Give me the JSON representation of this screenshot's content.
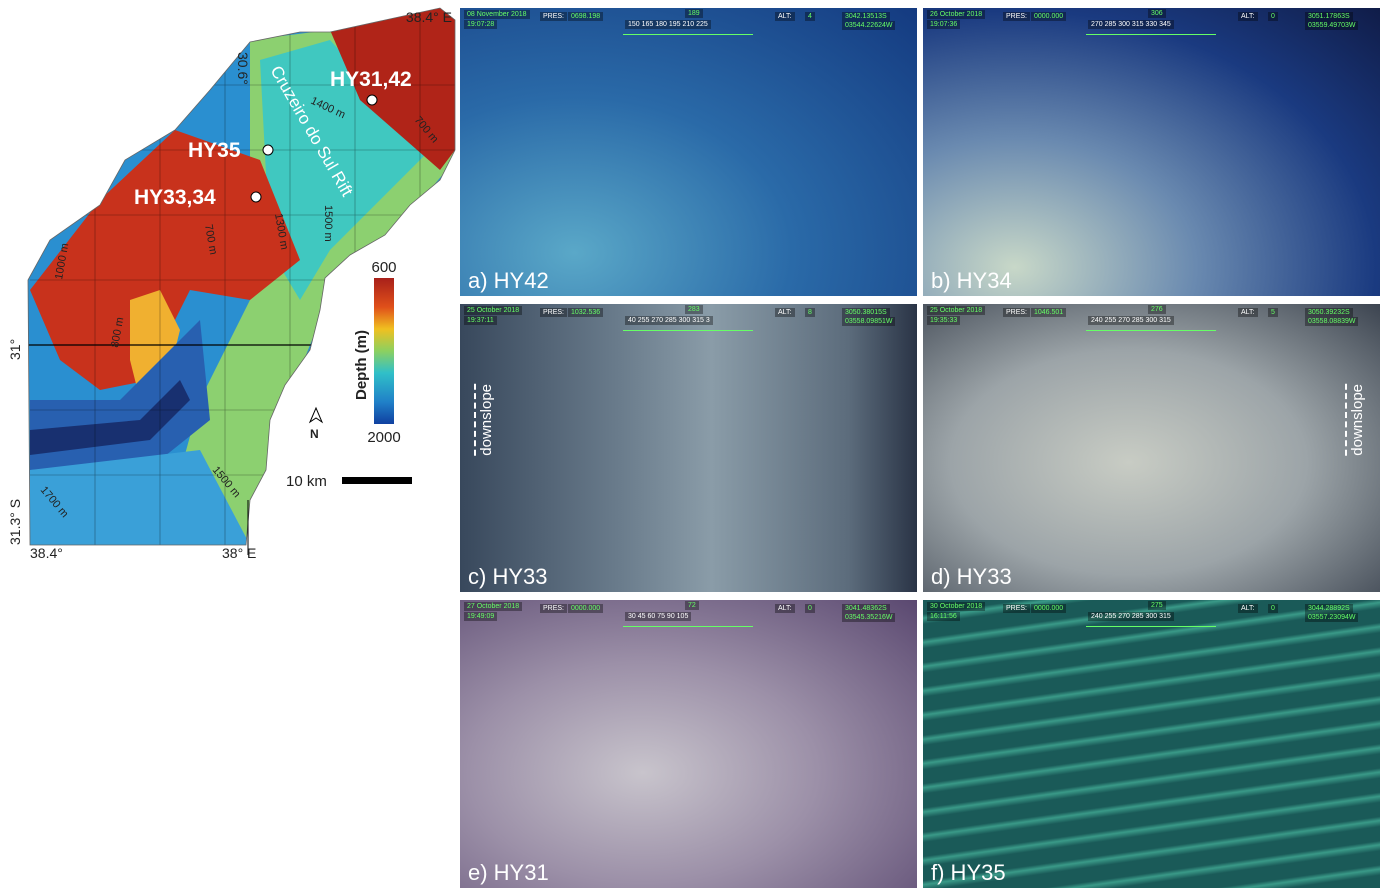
{
  "map": {
    "coords": {
      "top_right": "38.4° E",
      "lat_top": "30.6°",
      "lat_mid": "31°",
      "lat_bottom": "31.3° S",
      "lon_left": "38.4°",
      "lon_right": "38° E"
    },
    "sites": [
      "HY31,42",
      "HY35",
      "HY33,34"
    ],
    "rift_label": "Cruzeiro do Sul Rift",
    "contour_labels": [
      "1400 m",
      "700 m",
      "1300 m",
      "1500 m",
      "700 m",
      "1000 m",
      "800 m",
      "1700 m",
      "1500 m"
    ],
    "legend": {
      "title": "Depth (m)",
      "top": "600",
      "bottom": "2000"
    },
    "north": "N",
    "scale": "10 km"
  },
  "panels": [
    {
      "label": "a) HY42",
      "hud": {
        "date": "08 November 2018",
        "time": "19:07:28",
        "pres_label": "PRES:",
        "pres": "0698.198",
        "compass": "150 165 180 195 210 225",
        "heading": "189",
        "alt_label": "ALT:",
        "alt": "4",
        "lat": "3042.13513S",
        "lon": "03544.22624W"
      }
    },
    {
      "label": "b) HY34",
      "hud": {
        "date": "26 October 2018",
        "time": "19:07:36",
        "pres_label": "PRES:",
        "pres": "0000.000",
        "compass": "270 285 300 315 330 345",
        "heading": "306",
        "alt_label": "ALT:",
        "alt": "0",
        "lat": "3051.17863S",
        "lon": "03559.49703W"
      }
    },
    {
      "label": "c) HY33",
      "extra": "downslope",
      "hud": {
        "date": "25 October 2018",
        "time": "19:37:11",
        "pres_label": "PRES:",
        "pres": "1032.536",
        "compass": "40 255 270 285 300 315 3",
        "heading": "283",
        "alt_label": "ALT:",
        "alt": "8",
        "lat": "3050.38015S",
        "lon": "03558.09851W"
      }
    },
    {
      "label": "d) HY33",
      "extra": "downslope",
      "hud": {
        "date": "25 October 2018",
        "time": "19:35:33",
        "pres_label": "PRES:",
        "pres": "1046.501",
        "compass": "240 255 270 285 300 315",
        "heading": "276",
        "alt_label": "ALT:",
        "alt": "5",
        "lat": "3050.39232S",
        "lon": "03558.08839W"
      }
    },
    {
      "label": "e) HY31",
      "hud": {
        "date": "27 October 2018",
        "time": "19:49:09",
        "pres_label": "PRES:",
        "pres": "0000.000",
        "compass": "30 45 60 75 90 105",
        "heading": "72",
        "alt_label": "ALT:",
        "alt": "0",
        "lat": "3041.48362S",
        "lon": "03545.35216W"
      }
    },
    {
      "label": "f) HY35",
      "hud": {
        "date": "30 October 2018",
        "time": "16:11:56",
        "pres_label": "PRES:",
        "pres": "0000.000",
        "compass": "240 255 270 285 300 315",
        "heading": "275",
        "alt_label": "ALT:",
        "alt": "0",
        "lat": "3044.28892S",
        "lon": "03557.23094W"
      }
    }
  ]
}
